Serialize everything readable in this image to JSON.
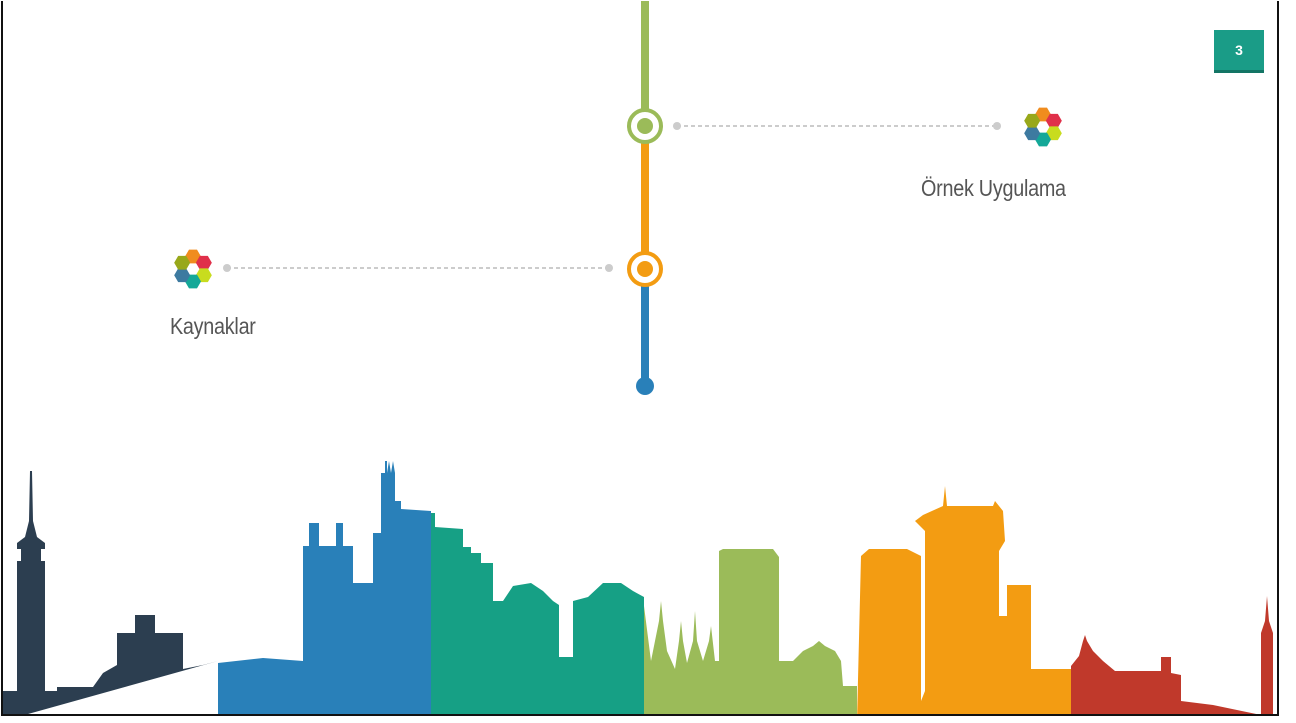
{
  "slide": {
    "page_number": "3",
    "items": [
      {
        "label": "Örnek Uygulama"
      },
      {
        "label": "Kaynaklar"
      }
    ]
  },
  "colors": {
    "green": "#9bbb59",
    "orange": "#f39c12",
    "blue": "#2980b9",
    "teal": "#16a085",
    "dark": "#2c3e50",
    "red": "#c0392b",
    "connector": "#cccccc",
    "badge": "#1a9c87"
  },
  "icons": {
    "hex_cluster": [
      "#f08c1e",
      "#e0304a",
      "#c8dc1e",
      "#14a898",
      "#3d7aa0",
      "#98a81a"
    ]
  }
}
